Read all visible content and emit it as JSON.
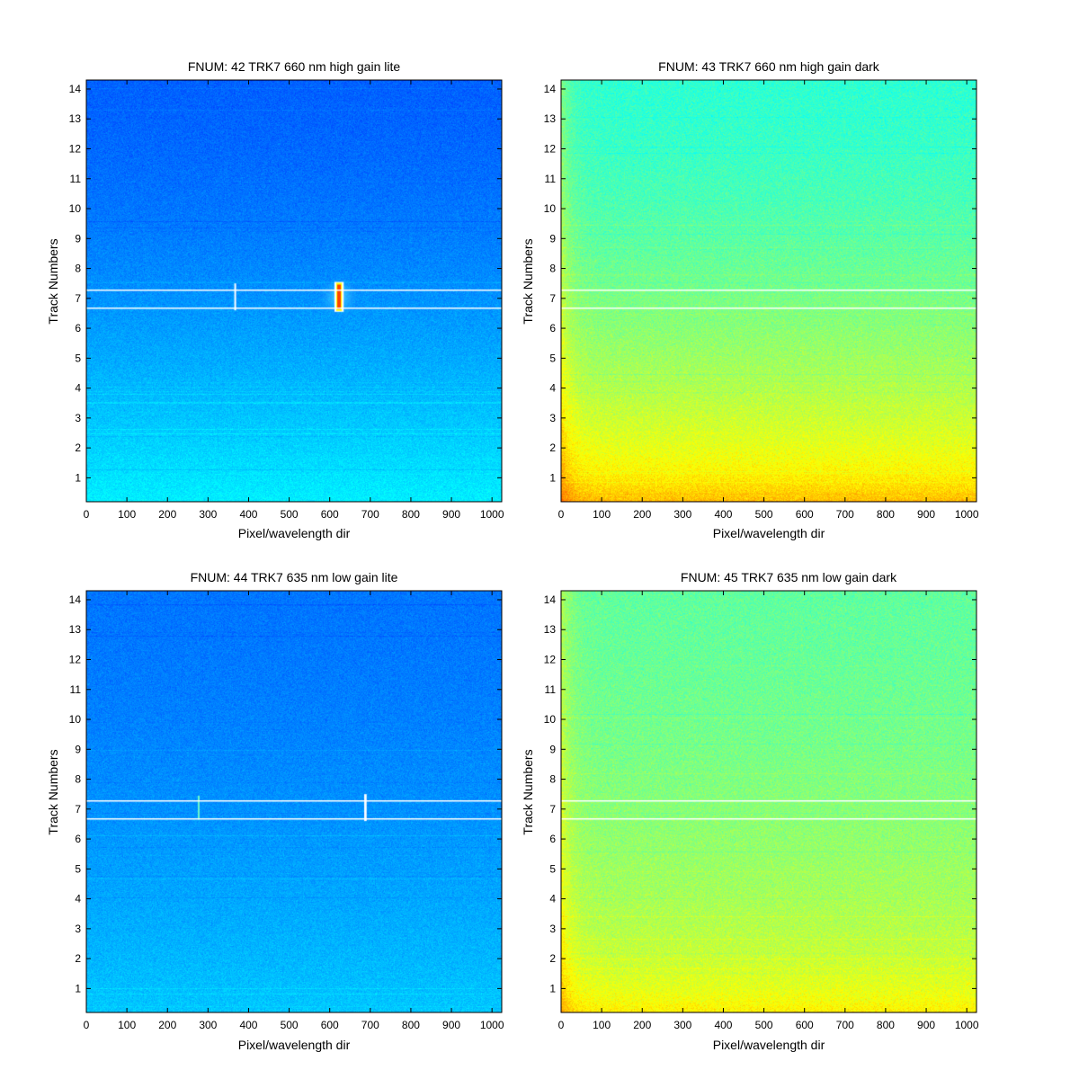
{
  "colormap": [
    "#00008f",
    "#0000ff",
    "#0080ff",
    "#00ffff",
    "#80ff80",
    "#ffff00",
    "#ff8000",
    "#ff0000",
    "#800000"
  ],
  "chart_data": [
    {
      "type": "heatmap",
      "title": "FNUM: 42 TRK7 660 nm high gain lite",
      "xlabel": "Pixel/wavelength dir",
      "ylabel": "Track Numbers",
      "xlim": [
        0,
        1024
      ],
      "ylim": [
        0.2,
        14.3
      ],
      "xticks": [
        0,
        100,
        200,
        300,
        400,
        500,
        600,
        700,
        800,
        900,
        1000
      ],
      "yticks": [
        1,
        2,
        3,
        4,
        5,
        6,
        7,
        8,
        9,
        10,
        11,
        12,
        13,
        14
      ],
      "grid": false,
      "background_level": {
        "top": 0.22,
        "bottom": 0.36
      },
      "noise": 0.035,
      "track_lines": [
        6.7,
        7.3
      ],
      "bright_features": [
        {
          "x": 367,
          "y_range": [
            6.6,
            7.5
          ],
          "intensity": 1.0,
          "width": 4
        },
        {
          "x": 623,
          "y_range": [
            6.55,
            7.55
          ],
          "intensity": 1.0,
          "width": 14,
          "core": "saturated"
        }
      ]
    },
    {
      "type": "heatmap",
      "title": "FNUM: 43 TRK7 660 nm high gain dark",
      "xlabel": "Pixel/wavelength dir",
      "ylabel": "Track Numbers",
      "xlim": [
        0,
        1024
      ],
      "ylim": [
        0.2,
        14.3
      ],
      "xticks": [
        0,
        100,
        200,
        300,
        400,
        500,
        600,
        700,
        800,
        900,
        1000
      ],
      "yticks": [
        1,
        2,
        3,
        4,
        5,
        6,
        7,
        8,
        9,
        10,
        11,
        12,
        13,
        14
      ],
      "grid": false,
      "background_level": {
        "top": 0.42,
        "bottom": 0.63
      },
      "noise": 0.05,
      "track_lines": [
        6.7,
        7.3
      ],
      "bright_features": []
    },
    {
      "type": "heatmap",
      "title": "FNUM: 44 TRK7 635 nm low gain lite",
      "xlabel": "Pixel/wavelength dir",
      "ylabel": "Track Numbers",
      "xlim": [
        0,
        1024
      ],
      "ylim": [
        0.2,
        14.3
      ],
      "xticks": [
        0,
        100,
        200,
        300,
        400,
        500,
        600,
        700,
        800,
        900,
        1000
      ],
      "yticks": [
        1,
        2,
        3,
        4,
        5,
        6,
        7,
        8,
        9,
        10,
        11,
        12,
        13,
        14
      ],
      "grid": false,
      "background_level": {
        "top": 0.24,
        "bottom": 0.32
      },
      "noise": 0.035,
      "track_lines": [
        6.7,
        7.3
      ],
      "bright_features": [
        {
          "x": 277,
          "y_range": [
            6.65,
            7.45
          ],
          "intensity": 0.5,
          "width": 2
        },
        {
          "x": 688,
          "y_range": [
            6.6,
            7.5
          ],
          "intensity": 1.0,
          "width": 6
        }
      ]
    },
    {
      "type": "heatmap",
      "title": "FNUM: 45 TRK7 635 nm low gain dark",
      "xlabel": "Pixel/wavelength dir",
      "ylabel": "Track Numbers",
      "xlim": [
        0,
        1024
      ],
      "ylim": [
        0.2,
        14.3
      ],
      "xticks": [
        0,
        100,
        200,
        300,
        400,
        500,
        600,
        700,
        800,
        900,
        1000
      ],
      "yticks": [
        1,
        2,
        3,
        4,
        5,
        6,
        7,
        8,
        9,
        10,
        11,
        12,
        13,
        14
      ],
      "grid": false,
      "background_level": {
        "top": 0.47,
        "bottom": 0.58
      },
      "noise": 0.05,
      "track_lines": [
        6.7,
        7.3
      ],
      "bright_features": []
    }
  ]
}
